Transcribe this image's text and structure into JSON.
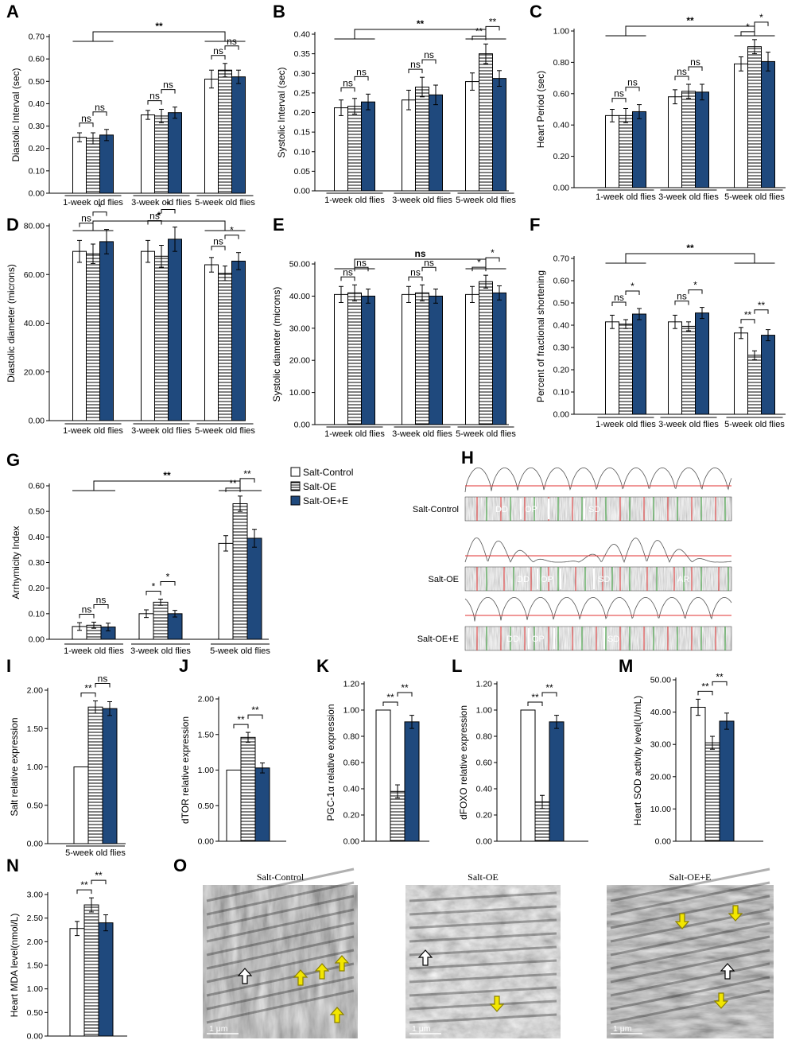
{
  "colors": {
    "control": "#ffffff",
    "oe": "hatched-horizontal",
    "oe_e": "#1f497d",
    "trace_line": "#e03030",
    "arrow_yellow": "#f2e600"
  },
  "legend": {
    "items": [
      "Salt-Control",
      "Salt-OE",
      "Salt-OE+E"
    ]
  },
  "chart_data": [
    {
      "panel": "A",
      "type": "bar",
      "ylabel": "Diastolic Interval (sec)",
      "yticks": [
        "0.00",
        "0.10",
        "0.20",
        "0.30",
        "0.40",
        "0.50",
        "0.60",
        "0.70"
      ],
      "ylim": [
        0,
        0.7
      ],
      "categories": [
        "1-week old flies",
        "3-week old flies",
        "5-week old flies"
      ],
      "series": [
        {
          "name": "Salt-Control",
          "values": [
            0.25,
            0.35,
            0.51
          ],
          "errors": [
            0.02,
            0.02,
            0.04
          ]
        },
        {
          "name": "Salt-OE",
          "values": [
            0.245,
            0.345,
            0.55
          ],
          "errors": [
            0.025,
            0.03,
            0.03
          ]
        },
        {
          "name": "Salt-OE+E",
          "values": [
            0.26,
            0.36,
            0.52
          ],
          "errors": [
            0.025,
            0.025,
            0.03
          ]
        }
      ],
      "annotations": [
        {
          "kind": "within",
          "group": 0,
          "labels": [
            "ns",
            "ns"
          ]
        },
        {
          "kind": "within",
          "group": 1,
          "labels": [
            "ns",
            "ns"
          ]
        },
        {
          "kind": "within",
          "group": 2,
          "labels": [
            "ns",
            "ns"
          ]
        },
        {
          "kind": "across",
          "label": "**"
        }
      ]
    },
    {
      "panel": "B",
      "type": "bar",
      "ylabel": "Systolic Interval (sec)",
      "yticks": [
        "0.00",
        "0.05",
        "0.10",
        "0.15",
        "0.20",
        "0.25",
        "0.30",
        "0.35",
        "0.40"
      ],
      "ylim": [
        0,
        0.4
      ],
      "categories": [
        "1-week old flies",
        "3-week old flies",
        "5-week old flies"
      ],
      "series": [
        {
          "name": "Salt-Control",
          "values": [
            0.212,
            0.232,
            0.279
          ],
          "errors": [
            0.02,
            0.025,
            0.022
          ]
        },
        {
          "name": "Salt-OE",
          "values": [
            0.216,
            0.265,
            0.35
          ],
          "errors": [
            0.02,
            0.025,
            0.025
          ]
        },
        {
          "name": "Salt-OE+E",
          "values": [
            0.227,
            0.245,
            0.287
          ],
          "errors": [
            0.02,
            0.025,
            0.02
          ]
        }
      ],
      "annotations": [
        {
          "kind": "within",
          "group": 0,
          "labels": [
            "ns",
            "ns"
          ]
        },
        {
          "kind": "within",
          "group": 1,
          "labels": [
            "ns",
            "ns"
          ]
        },
        {
          "kind": "within",
          "group": 2,
          "labels": [
            "**",
            "**"
          ]
        },
        {
          "kind": "across",
          "label": "**"
        }
      ]
    },
    {
      "panel": "C",
      "type": "bar",
      "ylabel": "Heart Period (sec)",
      "yticks": [
        "0.00",
        "0.20",
        "0.40",
        "0.60",
        "0.80",
        "1.00"
      ],
      "ylim": [
        0,
        1.0
      ],
      "categories": [
        "1-week old flies",
        "3-week old flies",
        "5-week old flies"
      ],
      "series": [
        {
          "name": "Salt-Control",
          "values": [
            0.46,
            0.58,
            0.79
          ],
          "errors": [
            0.04,
            0.045,
            0.045
          ]
        },
        {
          "name": "Salt-OE",
          "values": [
            0.46,
            0.615,
            0.9
          ],
          "errors": [
            0.045,
            0.045,
            0.045
          ]
        },
        {
          "name": "Salt-OE+E",
          "values": [
            0.485,
            0.61,
            0.805
          ],
          "errors": [
            0.045,
            0.05,
            0.06
          ]
        }
      ],
      "annotations": [
        {
          "kind": "within",
          "group": 0,
          "labels": [
            "ns",
            "ns"
          ]
        },
        {
          "kind": "within",
          "group": 1,
          "labels": [
            "ns",
            "ns"
          ]
        },
        {
          "kind": "within",
          "group": 2,
          "labels": [
            "*",
            "*"
          ]
        },
        {
          "kind": "across",
          "label": "**"
        }
      ]
    },
    {
      "panel": "D",
      "type": "bar",
      "ylabel": "Diastolic diameter (microns)",
      "yticks": [
        "0.00",
        "20.00",
        "40.00",
        "60.00",
        "80.00"
      ],
      "ylim": [
        0,
        80
      ],
      "categories": [
        "1-week old flies",
        "3-week old flies",
        "5-week old flies"
      ],
      "series": [
        {
          "name": "Salt-Control",
          "values": [
            69.5,
            69.5,
            64
          ],
          "errors": [
            4.5,
            4.5,
            3
          ]
        },
        {
          "name": "Salt-OE",
          "values": [
            68.5,
            67.5,
            60.5
          ],
          "errors": [
            4,
            4.5,
            3
          ]
        },
        {
          "name": "Salt-OE+E",
          "values": [
            73.5,
            74.5,
            65.5
          ],
          "errors": [
            5,
            5,
            3.5
          ]
        }
      ],
      "annotations": [
        {
          "kind": "within",
          "group": 0,
          "labels": [
            "ns",
            "*"
          ]
        },
        {
          "kind": "within",
          "group": 1,
          "labels": [
            "ns",
            "*"
          ]
        },
        {
          "kind": "within",
          "group": 2,
          "labels": [
            "ns",
            "*"
          ]
        },
        {
          "kind": "across",
          "label": "*"
        }
      ]
    },
    {
      "panel": "E",
      "type": "bar",
      "ylabel": "Systolic diameter (microns)",
      "yticks": [
        "0.00",
        "10.00",
        "20.00",
        "30.00",
        "40.00",
        "50.00"
      ],
      "ylim": [
        0,
        50
      ],
      "categories": [
        "1-week old flies",
        "3-week old flies",
        "5-week old flies"
      ],
      "series": [
        {
          "name": "Salt-Control",
          "values": [
            40.5,
            40.5,
            40.5
          ],
          "errors": [
            2.5,
            2.5,
            2.5
          ]
        },
        {
          "name": "Salt-OE",
          "values": [
            41,
            41,
            44.5
          ],
          "errors": [
            2.5,
            2.5,
            2
          ]
        },
        {
          "name": "Salt-OE+E",
          "values": [
            40,
            40,
            41
          ],
          "errors": [
            2.2,
            2.2,
            2.2
          ]
        }
      ],
      "annotations": [
        {
          "kind": "within",
          "group": 0,
          "labels": [
            "ns",
            "ns"
          ]
        },
        {
          "kind": "within",
          "group": 1,
          "labels": [
            "ns",
            "ns"
          ]
        },
        {
          "kind": "within",
          "group": 2,
          "labels": [
            "*",
            "*"
          ]
        },
        {
          "kind": "across",
          "label": "ns"
        }
      ]
    },
    {
      "panel": "F",
      "type": "bar",
      "ylabel": "Percent of fractional shortening",
      "yticks": [
        "0.00",
        "0.10",
        "0.20",
        "0.30",
        "0.40",
        "0.50",
        "0.60",
        "0.70"
      ],
      "ylim": [
        0,
        0.7
      ],
      "categories": [
        "1-week old flies",
        "3-week old flies",
        "5-week old flies"
      ],
      "series": [
        {
          "name": "Salt-Control",
          "values": [
            0.415,
            0.415,
            0.365
          ],
          "errors": [
            0.03,
            0.03,
            0.025
          ]
        },
        {
          "name": "Salt-OE",
          "values": [
            0.405,
            0.395,
            0.265
          ],
          "errors": [
            0.02,
            0.02,
            0.02
          ]
        },
        {
          "name": "Salt-OE+E",
          "values": [
            0.45,
            0.455,
            0.355
          ],
          "errors": [
            0.025,
            0.025,
            0.025
          ]
        }
      ],
      "annotations": [
        {
          "kind": "within",
          "group": 0,
          "labels": [
            "ns",
            "*"
          ]
        },
        {
          "kind": "within",
          "group": 1,
          "labels": [
            "ns",
            "*"
          ]
        },
        {
          "kind": "within",
          "group": 2,
          "labels": [
            "**",
            "**"
          ]
        },
        {
          "kind": "across",
          "label": "**"
        }
      ]
    },
    {
      "panel": "G",
      "type": "bar",
      "ylabel": "Arrhymicity Index",
      "yticks": [
        "0.00",
        "0.10",
        "0.20",
        "0.30",
        "0.40",
        "0.50",
        "0.60"
      ],
      "ylim": [
        0,
        0.6
      ],
      "categories": [
        "1-week old flies",
        "3-week old flies",
        "5-week old flies"
      ],
      "series": [
        {
          "name": "Salt-Control",
          "values": [
            0.05,
            0.1,
            0.375
          ],
          "errors": [
            0.015,
            0.015,
            0.03
          ]
        },
        {
          "name": "Salt-OE",
          "values": [
            0.055,
            0.145,
            0.53
          ],
          "errors": [
            0.012,
            0.012,
            0.03
          ]
        },
        {
          "name": "Salt-OE+E",
          "values": [
            0.048,
            0.1,
            0.395
          ],
          "errors": [
            0.015,
            0.013,
            0.035
          ]
        }
      ],
      "annotations": [
        {
          "kind": "within",
          "group": 0,
          "labels": [
            "ns",
            "ns"
          ]
        },
        {
          "kind": "within",
          "group": 1,
          "labels": [
            "*",
            "*"
          ]
        },
        {
          "kind": "within",
          "group": 2,
          "labels": [
            "**",
            "**"
          ]
        },
        {
          "kind": "across",
          "label": "**"
        }
      ]
    },
    {
      "panel": "I",
      "type": "bar",
      "ylabel": "Salt relative expression",
      "yticks": [
        "0.00",
        "0.50",
        "1.00",
        "1.50",
        "2.00"
      ],
      "ylim": [
        0,
        2.0
      ],
      "categories": [
        "5-week old flies"
      ],
      "series": [
        {
          "name": "Salt-Control",
          "values": [
            1.0
          ],
          "errors": [
            0
          ]
        },
        {
          "name": "Salt-OE",
          "values": [
            1.78
          ],
          "errors": [
            0.08
          ]
        },
        {
          "name": "Salt-OE+E",
          "values": [
            1.76
          ],
          "errors": [
            0.09
          ]
        }
      ],
      "annotations": [
        {
          "kind": "within",
          "group": 0,
          "labels": [
            "**",
            "ns"
          ]
        }
      ]
    },
    {
      "panel": "J",
      "type": "bar",
      "ylabel": "dTOR relative expression",
      "yticks": [
        "0.00",
        "0.50",
        "1.00",
        "1.50",
        "2.00"
      ],
      "ylim": [
        0,
        2.0
      ],
      "categories": [
        ""
      ],
      "series": [
        {
          "name": "Salt-Control",
          "values": [
            1.0
          ],
          "errors": [
            0
          ]
        },
        {
          "name": "Salt-OE",
          "values": [
            1.46
          ],
          "errors": [
            0.07
          ]
        },
        {
          "name": "Salt-OE+E",
          "values": [
            1.03
          ],
          "errors": [
            0.07
          ]
        }
      ],
      "annotations": [
        {
          "kind": "within",
          "group": 0,
          "labels": [
            "**",
            "**"
          ]
        }
      ]
    },
    {
      "panel": "K",
      "type": "bar",
      "ylabel": "PGC-1α relative expression",
      "yticks": [
        "0.00",
        "0.20",
        "0.40",
        "0.60",
        "0.80",
        "1.00",
        "1.20"
      ],
      "ylim": [
        0,
        1.2
      ],
      "categories": [
        ""
      ],
      "series": [
        {
          "name": "Salt-Control",
          "values": [
            1.0
          ],
          "errors": [
            0
          ]
        },
        {
          "name": "Salt-OE",
          "values": [
            0.38
          ],
          "errors": [
            0.05
          ]
        },
        {
          "name": "Salt-OE+E",
          "values": [
            0.91
          ],
          "errors": [
            0.05
          ]
        }
      ],
      "annotations": [
        {
          "kind": "within",
          "group": 0,
          "labels": [
            "**",
            "**"
          ]
        }
      ]
    },
    {
      "panel": "L",
      "type": "bar",
      "ylabel": "dFOXO relative expression",
      "yticks": [
        "0.00",
        "0.20",
        "0.40",
        "0.60",
        "0.80",
        "1.00",
        "1.20"
      ],
      "ylim": [
        0,
        1.2
      ],
      "categories": [
        ""
      ],
      "series": [
        {
          "name": "Salt-Control",
          "values": [
            1.0
          ],
          "errors": [
            0
          ]
        },
        {
          "name": "Salt-OE",
          "values": [
            0.3
          ],
          "errors": [
            0.05
          ]
        },
        {
          "name": "Salt-OE+E",
          "values": [
            0.91
          ],
          "errors": [
            0.05
          ]
        }
      ],
      "annotations": [
        {
          "kind": "within",
          "group": 0,
          "labels": [
            "**",
            "**"
          ]
        }
      ]
    },
    {
      "panel": "M",
      "type": "bar",
      "ylabel": "Heart SOD activity level(U/mL)",
      "yticks": [
        "0.00",
        "10.00",
        "20.00",
        "30.00",
        "40.00",
        "50.00"
      ],
      "ylim": [
        0,
        50
      ],
      "categories": [
        ""
      ],
      "series": [
        {
          "name": "Salt-Control",
          "values": [
            41.5
          ],
          "errors": [
            2.5
          ]
        },
        {
          "name": "Salt-OE",
          "values": [
            30.5
          ],
          "errors": [
            2
          ]
        },
        {
          "name": "Salt-OE+E",
          "values": [
            37.2
          ],
          "errors": [
            2.5
          ]
        }
      ],
      "annotations": [
        {
          "kind": "within",
          "group": 0,
          "labels": [
            "**",
            "**"
          ]
        }
      ]
    },
    {
      "panel": "N",
      "type": "bar",
      "ylabel": "Heart MDA level(nmol/L)",
      "yticks": [
        "0.00",
        "0.50",
        "1.00",
        "1.50",
        "2.00",
        "2.50",
        "3.00"
      ],
      "ylim": [
        0,
        3.0
      ],
      "categories": [
        ""
      ],
      "series": [
        {
          "name": "Salt-Control",
          "values": [
            2.28
          ],
          "errors": [
            0.15
          ]
        },
        {
          "name": "Salt-OE",
          "values": [
            2.78
          ],
          "errors": [
            0.15
          ]
        },
        {
          "name": "Salt-OE+E",
          "values": [
            2.4
          ],
          "errors": [
            0.17
          ]
        }
      ],
      "annotations": [
        {
          "kind": "within",
          "group": 0,
          "labels": [
            "**",
            "**"
          ]
        }
      ]
    }
  ],
  "panel_h": {
    "title": "H",
    "rows": [
      {
        "label": "Salt-Control",
        "marks": [
          "DD",
          "OP",
          "SD"
        ]
      },
      {
        "label": "Salt-OE",
        "marks": [
          "DD",
          "OP",
          "SD",
          "AR"
        ]
      },
      {
        "label": "Salt-OE+E",
        "marks": [
          "DD",
          "OP",
          "SD"
        ]
      }
    ]
  },
  "panel_o": {
    "title": "O",
    "images": [
      {
        "label": "Salt-Control",
        "scale": "1 μm"
      },
      {
        "label": "Salt-OE",
        "scale": "1 μm"
      },
      {
        "label": "Salt-OE+E",
        "scale": "1 μm"
      }
    ]
  }
}
